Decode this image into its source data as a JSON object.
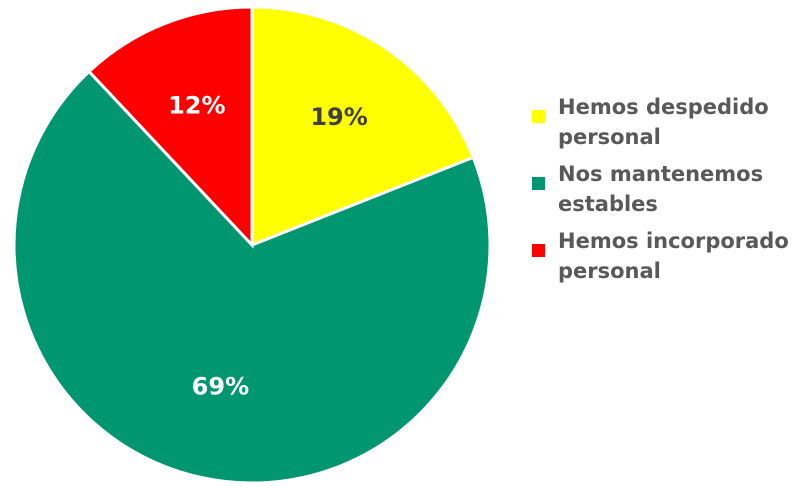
{
  "chart_data": {
    "type": "pie",
    "title": "",
    "slices": [
      {
        "label": "Hemos despedido personal",
        "value": 19,
        "display": "19%",
        "color": "#ffff00",
        "label_color": "#404040"
      },
      {
        "label": "Nos mantenemos estables",
        "value": 69,
        "display": "69%",
        "color": "#009670",
        "label_color": "#ffffff"
      },
      {
        "label": "Hemos incorporado personal",
        "value": 12,
        "display": "12%",
        "color": "#ff0000",
        "label_color": "#ffffff"
      }
    ],
    "start_angle_deg": 0,
    "direction": "clockwise",
    "legend_position": "right"
  }
}
